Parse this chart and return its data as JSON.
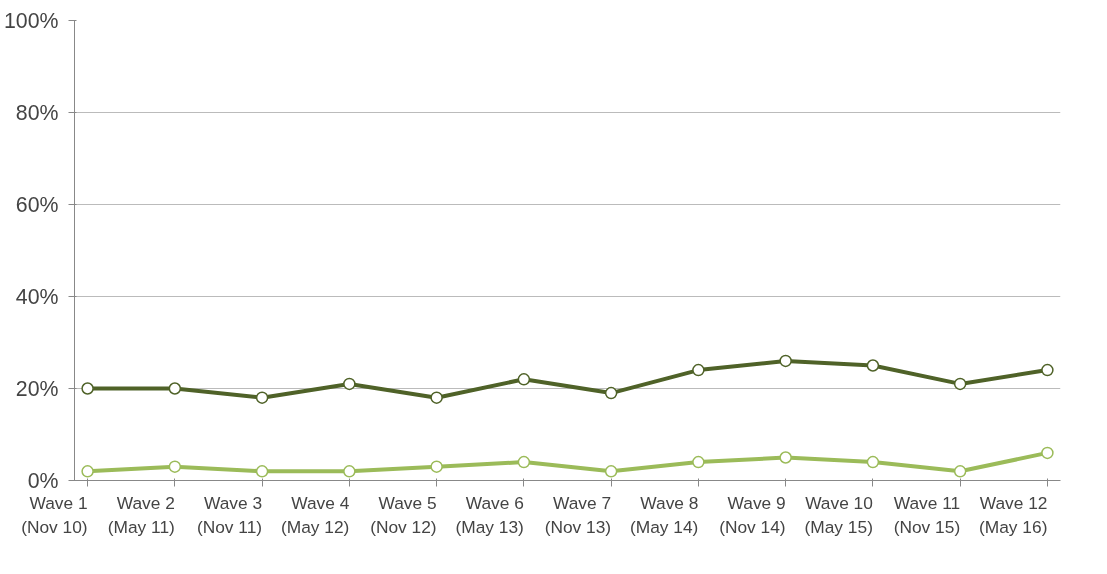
{
  "chart_data": {
    "type": "line",
    "categories": [
      "Wave 1 (Nov 10)",
      "Wave 2 (May 11)",
      "Wave 3 (Nov 11)",
      "Wave 4 (May 12)",
      "Wave 5 (Nov 12)",
      "Wave 6 (May 13)",
      "Wave 7 (Nov 13)",
      "Wave 8 (May 14)",
      "Wave 9 (Nov 14)",
      "Wave 10 (May 15)",
      "Wave 11 (Nov 15)",
      "Wave 12 (May 16)"
    ],
    "series": [
      {
        "color": "#4f6228",
        "values": [
          20,
          20,
          18,
          21,
          18,
          22,
          19,
          24,
          26,
          25,
          21,
          24
        ]
      },
      {
        "color": "#9bbb59",
        "values": [
          2,
          3,
          2,
          2,
          3,
          4,
          2,
          4,
          5,
          4,
          2,
          6
        ]
      }
    ],
    "ylim": [
      0,
      100
    ],
    "yticks": [
      {
        "value": 0,
        "label": "0%"
      },
      {
        "value": 20,
        "label": "20%"
      },
      {
        "value": 40,
        "label": "40%"
      },
      {
        "value": 60,
        "label": "60%"
      },
      {
        "value": 80,
        "label": "80%"
      },
      {
        "value": 100,
        "label": "100%"
      }
    ],
    "grid": "y",
    "marker": "circle",
    "line_style": "solid"
  }
}
